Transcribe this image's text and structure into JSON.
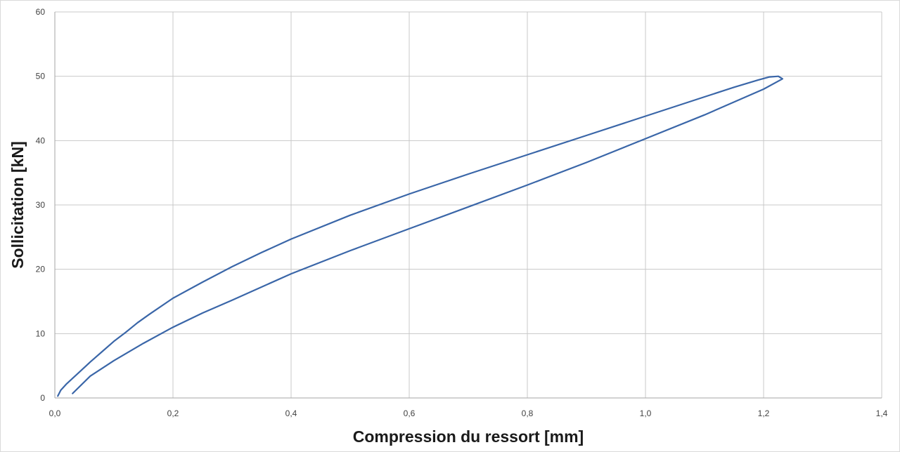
{
  "chart_data": {
    "type": "line",
    "title": "",
    "xlabel": "Compression du ressort [mm]",
    "ylabel": "Sollicitation [kN]",
    "xlim": [
      0,
      1.4
    ],
    "ylim": [
      0,
      60
    ],
    "x_ticks": [
      "0,0",
      "0,2",
      "0,4",
      "0,6",
      "0,8",
      "1,0",
      "1,2",
      "1,4"
    ],
    "y_ticks": [
      "0",
      "10",
      "20",
      "30",
      "40",
      "50",
      "60"
    ],
    "grid": true,
    "legend": "none",
    "line_color": "#3a66a8",
    "series": [
      {
        "points": [
          [
            0.005,
            0.3
          ],
          [
            0.01,
            1.2
          ],
          [
            0.02,
            2.2
          ],
          [
            0.04,
            3.9
          ],
          [
            0.06,
            5.6
          ],
          [
            0.08,
            7.2
          ],
          [
            0.1,
            8.8
          ],
          [
            0.12,
            10.2
          ],
          [
            0.14,
            11.7
          ],
          [
            0.16,
            13.0
          ],
          [
            0.2,
            15.5
          ],
          [
            0.25,
            18.0
          ],
          [
            0.3,
            20.4
          ],
          [
            0.35,
            22.6
          ],
          [
            0.4,
            24.7
          ],
          [
            0.5,
            28.4
          ],
          [
            0.6,
            31.7
          ],
          [
            0.7,
            34.8
          ],
          [
            0.8,
            37.8
          ],
          [
            0.9,
            40.8
          ],
          [
            1.0,
            43.8
          ],
          [
            1.1,
            46.8
          ],
          [
            1.15,
            48.3
          ],
          [
            1.19,
            49.4
          ],
          [
            1.21,
            49.9
          ],
          [
            1.225,
            50.0
          ],
          [
            1.232,
            49.6
          ],
          [
            1.2,
            48.0
          ],
          [
            1.1,
            44.0
          ],
          [
            1.0,
            40.3
          ],
          [
            0.9,
            36.6
          ],
          [
            0.8,
            33.1
          ],
          [
            0.7,
            29.7
          ],
          [
            0.6,
            26.3
          ],
          [
            0.5,
            22.9
          ],
          [
            0.4,
            19.3
          ],
          [
            0.3,
            15.2
          ],
          [
            0.25,
            13.2
          ],
          [
            0.2,
            11.0
          ],
          [
            0.15,
            8.5
          ],
          [
            0.1,
            5.8
          ],
          [
            0.06,
            3.4
          ],
          [
            0.03,
            0.7
          ]
        ]
      }
    ]
  }
}
